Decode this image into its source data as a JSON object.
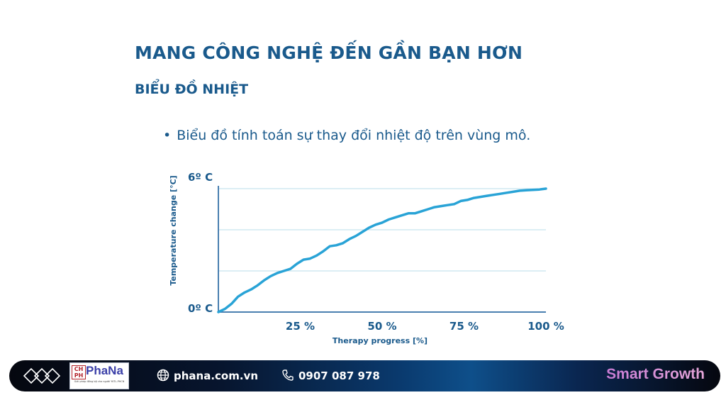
{
  "slide": {
    "title": "MANG CÔNG NGHỆ ĐẾN GẦN BẠN HƠN",
    "subtitle": "BIỂU ĐỒ NHIỆT",
    "bullet": "Biểu đồ tính toán sự thay đổi nhiệt độ trên vùng mô."
  },
  "chart_data": {
    "type": "line",
    "title": "",
    "xlabel": "Therapy progress [%]",
    "ylabel": "Temperature change [°C]",
    "xlim": [
      0,
      100
    ],
    "ylim": [
      0,
      6
    ],
    "x_ticks": [
      {
        "value": 25,
        "label": "25 %"
      },
      {
        "value": 50,
        "label": "50 %"
      },
      {
        "value": 75,
        "label": "75 %"
      },
      {
        "value": 100,
        "label": "100 %"
      }
    ],
    "y_ticks": [
      {
        "value": 0,
        "label": "0º C"
      },
      {
        "value": 6,
        "label": "6º C"
      }
    ],
    "grid": {
      "horizontal": true,
      "vertical": false,
      "levels": [
        2,
        4,
        6
      ]
    },
    "color": "#29a3d6",
    "series": [
      {
        "x": [
          0,
          2,
          4,
          6,
          8,
          10,
          12,
          14,
          16,
          18,
          20,
          22,
          24,
          26,
          28,
          30,
          32,
          34,
          36,
          38,
          40,
          42,
          44,
          46,
          48,
          50,
          52,
          54,
          56,
          58,
          60,
          62,
          64,
          66,
          68,
          70,
          72,
          74,
          76,
          78,
          80,
          82,
          84,
          86,
          88,
          90,
          92,
          94,
          96,
          98,
          100
        ],
        "y": [
          0,
          0.15,
          0.4,
          0.75,
          0.95,
          1.1,
          1.3,
          1.55,
          1.75,
          1.9,
          2.0,
          2.1,
          2.35,
          2.55,
          2.6,
          2.75,
          2.95,
          3.2,
          3.25,
          3.35,
          3.55,
          3.7,
          3.9,
          4.1,
          4.25,
          4.35,
          4.5,
          4.6,
          4.7,
          4.8,
          4.8,
          4.9,
          5.0,
          5.1,
          5.15,
          5.2,
          5.25,
          5.4,
          5.45,
          5.55,
          5.6,
          5.65,
          5.7,
          5.75,
          5.8,
          5.85,
          5.9,
          5.92,
          5.94,
          5.96,
          6.0
        ]
      }
    ]
  },
  "footer": {
    "website": "phana.com.vn",
    "phone": "0907 087 978",
    "brand": "Smart Growth",
    "logo_name": "PhaNa",
    "logo_box": "CH PH",
    "logo_tagline": "Giải pháp đồng bộ cho người YKTL-PHCN"
  }
}
